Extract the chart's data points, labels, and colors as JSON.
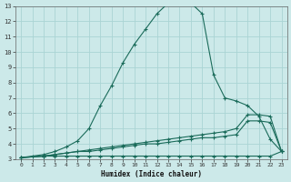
{
  "xlabel": "Humidex (Indice chaleur)",
  "xlim": [
    -0.5,
    23.5
  ],
  "ylim": [
    3,
    13
  ],
  "yticks": [
    3,
    4,
    5,
    6,
    7,
    8,
    9,
    10,
    11,
    12,
    13
  ],
  "xticks": [
    0,
    1,
    2,
    3,
    4,
    5,
    6,
    7,
    8,
    9,
    10,
    11,
    12,
    13,
    14,
    15,
    16,
    17,
    18,
    19,
    20,
    21,
    22,
    23
  ],
  "bg_color": "#cce9e9",
  "grid_color": "#aad4d4",
  "line_color": "#1a6b5a",
  "curves": [
    {
      "x": [
        0,
        1,
        2,
        3,
        4,
        5,
        6,
        7,
        8,
        9,
        10,
        11,
        12,
        13,
        14,
        15,
        16,
        17,
        18,
        19,
        20,
        21,
        22,
        23
      ],
      "y": [
        3.1,
        3.2,
        3.3,
        3.5,
        3.8,
        4.2,
        5.0,
        6.5,
        7.8,
        9.3,
        10.5,
        11.5,
        12.5,
        13.2,
        13.3,
        13.2,
        12.5,
        8.5,
        7.0,
        6.8,
        6.5,
        5.8,
        4.3,
        3.5
      ]
    },
    {
      "x": [
        0,
        2,
        3,
        4,
        5,
        6,
        7,
        8,
        9,
        10,
        11,
        12,
        13,
        14,
        15,
        16,
        17,
        18,
        19,
        20,
        21,
        22,
        23
      ],
      "y": [
        3.1,
        3.2,
        3.3,
        3.4,
        3.5,
        3.6,
        3.7,
        3.8,
        3.9,
        4.0,
        4.1,
        4.2,
        4.3,
        4.4,
        4.5,
        4.6,
        4.7,
        4.8,
        5.0,
        5.9,
        5.9,
        5.8,
        3.5
      ]
    },
    {
      "x": [
        0,
        2,
        3,
        4,
        5,
        6,
        7,
        8,
        9,
        10,
        11,
        12,
        13,
        14,
        15,
        16,
        17,
        18,
        19,
        20,
        21,
        22,
        23
      ],
      "y": [
        3.1,
        3.2,
        3.3,
        3.4,
        3.5,
        3.5,
        3.6,
        3.7,
        3.8,
        3.9,
        4.0,
        4.0,
        4.1,
        4.2,
        4.3,
        4.4,
        4.4,
        4.5,
        4.6,
        5.5,
        5.5,
        5.4,
        3.5
      ]
    },
    {
      "x": [
        0,
        2,
        3,
        4,
        5,
        6,
        7,
        8,
        9,
        10,
        11,
        12,
        13,
        14,
        15,
        16,
        17,
        18,
        19,
        20,
        21,
        22,
        23
      ],
      "y": [
        3.1,
        3.2,
        3.2,
        3.2,
        3.2,
        3.2,
        3.2,
        3.2,
        3.2,
        3.2,
        3.2,
        3.2,
        3.2,
        3.2,
        3.2,
        3.2,
        3.2,
        3.2,
        3.2,
        3.2,
        3.2,
        3.2,
        3.5
      ]
    }
  ]
}
